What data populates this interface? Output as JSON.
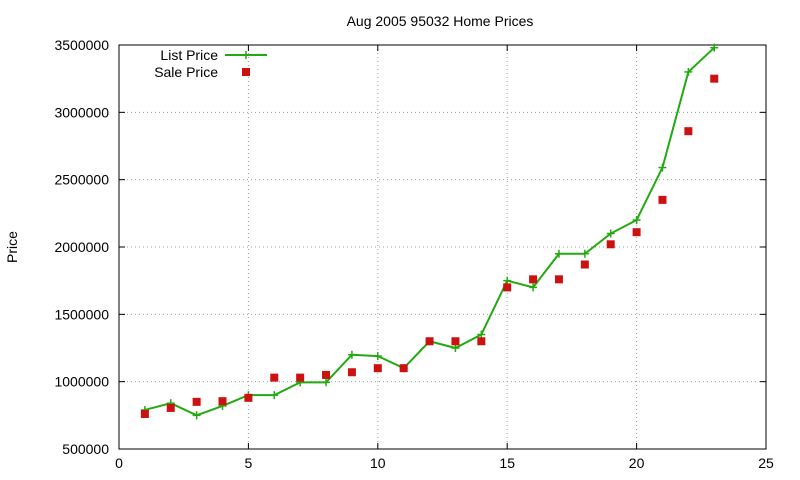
{
  "chart_data": {
    "type": "line",
    "title": "Aug 2005 95032 Home Prices",
    "xlabel": "",
    "ylabel": "Price",
    "xlim": [
      0,
      25
    ],
    "ylim": [
      500000,
      3500000
    ],
    "x_ticks": [
      "0",
      "5",
      "10",
      "15",
      "20",
      "25"
    ],
    "y_ticks": [
      "500000",
      "1000000",
      "1500000",
      "2000000",
      "2500000",
      "3000000",
      "3500000"
    ],
    "grid": true,
    "legend_position": "top-left",
    "series": [
      {
        "name": "List Price",
        "style": "lines+points",
        "color": "#22aa11",
        "x": [
          1,
          2,
          3,
          4,
          5,
          6,
          7,
          8,
          9,
          10,
          11,
          12,
          13,
          14,
          15,
          16,
          17,
          18,
          19,
          20,
          21,
          22,
          23
        ],
        "y": [
          790000,
          840000,
          750000,
          820000,
          900000,
          900000,
          995000,
          995000,
          1200000,
          1190000,
          1100000,
          1300000,
          1250000,
          1350000,
          1750000,
          1700000,
          1950000,
          1950000,
          2100000,
          2200000,
          2590000,
          3300000,
          3480000
        ]
      },
      {
        "name": "Sale Price",
        "style": "points",
        "color": "#cc1111",
        "x": [
          1,
          2,
          3,
          4,
          5,
          6,
          7,
          8,
          9,
          10,
          11,
          12,
          13,
          14,
          15,
          16,
          17,
          18,
          19,
          20,
          21,
          22,
          23
        ],
        "y": [
          760000,
          805000,
          850000,
          855000,
          880000,
          1030000,
          1030000,
          1050000,
          1070000,
          1100000,
          1100000,
          1300000,
          1300000,
          1300000,
          1700000,
          1760000,
          1760000,
          1870000,
          2020000,
          2110000,
          2350000,
          2860000,
          3250000
        ]
      }
    ]
  }
}
